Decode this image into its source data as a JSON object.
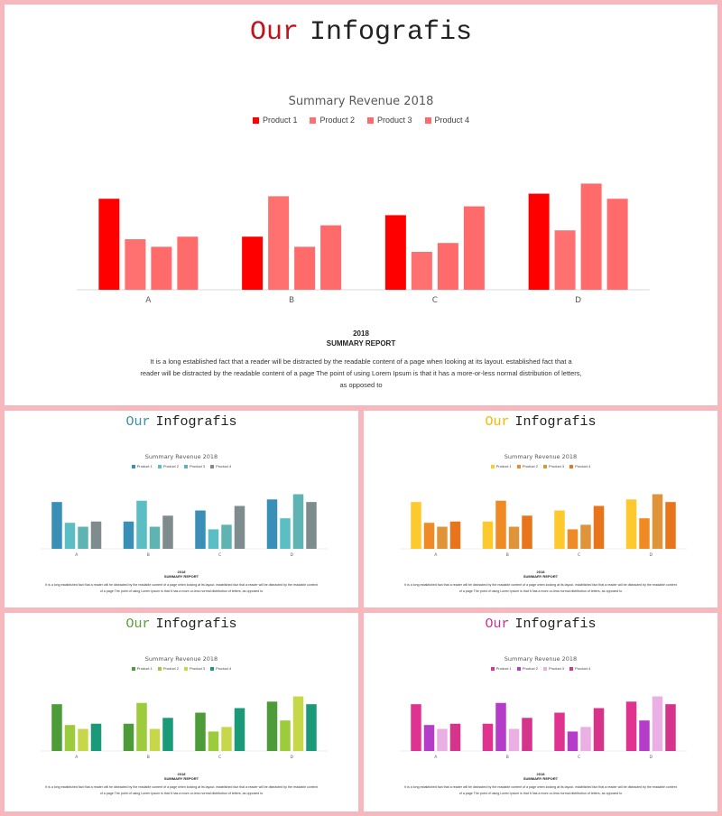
{
  "heading": {
    "accent": "Our",
    "rest": "Infografis"
  },
  "chart_data": [
    {
      "type": "bar",
      "title": "Summary Revenue 2018",
      "categories": [
        "A",
        "B",
        "C",
        "D"
      ],
      "legend_position": "top",
      "ylim": [
        0,
        100
      ],
      "series": [
        {
          "name": "Product 1",
          "values": [
            72,
            42,
            59,
            76
          ]
        },
        {
          "name": "Product 2",
          "values": [
            40,
            74,
            30,
            47
          ]
        },
        {
          "name": "Product 3",
          "values": [
            34,
            34,
            37,
            84
          ]
        },
        {
          "name": "Product 4",
          "values": [
            42,
            51,
            66,
            72
          ]
        }
      ]
    }
  ],
  "footer": {
    "year": "2018",
    "subtitle": "SUMMARY REPORT",
    "text": "It is a long established fact that a reader will be distracted by the readable content of a page when looking at its layout. established fact that a reader will be distracted by the readable content of a page  The point of using Lorem Ipsum is that it has a more-or-less normal distribution of letters, as opposed to"
  },
  "themes": [
    {
      "id": "red",
      "accent": "#c0141a",
      "colors": [
        "#ff0000",
        "#ff7070",
        "#ff6b6b",
        "#ff6a6a"
      ]
    },
    {
      "id": "blue",
      "accent": "#3a8fa8",
      "colors": [
        "#3a8fb7",
        "#5bbec4",
        "#5fb3b3",
        "#7f8c8d"
      ]
    },
    {
      "id": "orange",
      "accent": "#f5b800",
      "colors": [
        "#fdc92c",
        "#f08a24",
        "#e0943a",
        "#e8741c"
      ]
    },
    {
      "id": "green",
      "accent": "#5a9e3a",
      "colors": [
        "#4e9b3a",
        "#9ccc3c",
        "#c6d84a",
        "#1a9a78"
      ]
    },
    {
      "id": "pink",
      "accent": "#c4368e",
      "colors": [
        "#e0338f",
        "#b53cc8",
        "#eab0e4",
        "#d6338a"
      ]
    }
  ]
}
